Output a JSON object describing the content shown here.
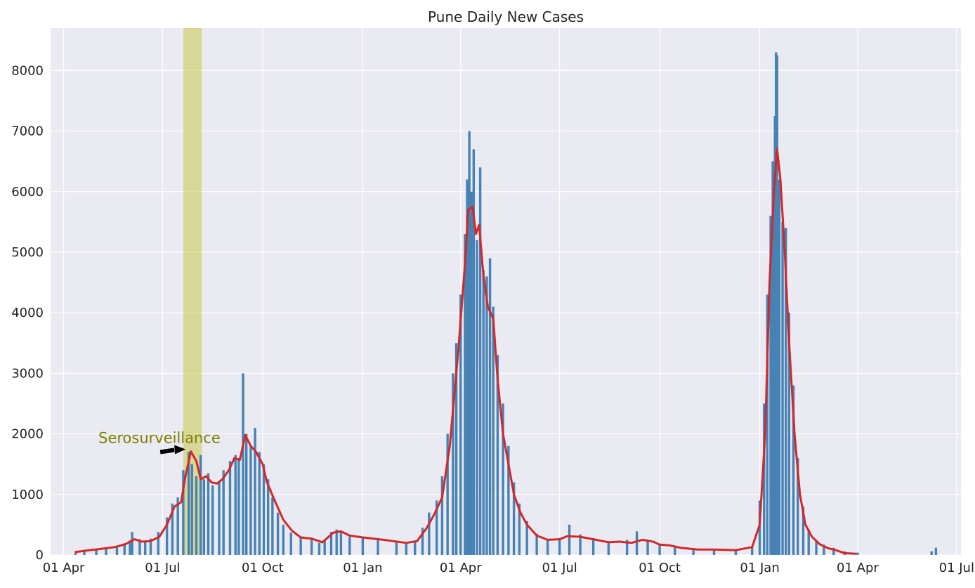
{
  "chart_data": {
    "type": "bar",
    "title": "Pune Daily New Cases",
    "xlabel": "",
    "ylabel": "",
    "xlim": [
      "2020-03-20",
      "2022-07-05"
    ],
    "ylim": [
      0,
      8700
    ],
    "grid": true,
    "x_ticks": [
      {
        "date": "2020-04-01",
        "label": "01 Apr"
      },
      {
        "date": "2020-07-01",
        "label": "01 Jul"
      },
      {
        "date": "2020-10-01",
        "label": "01 Oct"
      },
      {
        "date": "2021-01-01",
        "label": "01 Jan"
      },
      {
        "date": "2021-04-01",
        "label": "01 Apr"
      },
      {
        "date": "2021-07-01",
        "label": "01 Jul"
      },
      {
        "date": "2021-10-01",
        "label": "01 Oct"
      },
      {
        "date": "2022-01-01",
        "label": "01 Jan"
      },
      {
        "date": "2022-04-01",
        "label": "01 Apr"
      },
      {
        "date": "2022-07-01",
        "label": "01 Jul"
      }
    ],
    "y_ticks": [
      0,
      1000,
      2000,
      3000,
      4000,
      5000,
      6000,
      7000,
      8000
    ],
    "series": [
      {
        "kind": "bar",
        "color": "#4682b4",
        "points": [
          [
            "2020-04-12",
            30
          ],
          [
            "2020-04-20",
            60
          ],
          [
            "2020-05-01",
            80
          ],
          [
            "2020-05-10",
            110
          ],
          [
            "2020-05-20",
            150
          ],
          [
            "2020-05-27",
            190
          ],
          [
            "2020-06-01",
            240
          ],
          [
            "2020-06-03",
            380
          ],
          [
            "2020-06-10",
            260
          ],
          [
            "2020-06-15",
            220
          ],
          [
            "2020-06-20",
            270
          ],
          [
            "2020-06-27",
            380
          ],
          [
            "2020-07-05",
            620
          ],
          [
            "2020-07-10",
            850
          ],
          [
            "2020-07-15",
            950
          ],
          [
            "2020-07-20",
            1400
          ],
          [
            "2020-07-25",
            1700
          ],
          [
            "2020-07-28",
            1500
          ],
          [
            "2020-08-01",
            1300
          ],
          [
            "2020-08-05",
            1650
          ],
          [
            "2020-08-08",
            1250
          ],
          [
            "2020-08-12",
            1350
          ],
          [
            "2020-08-16",
            1150
          ],
          [
            "2020-08-22",
            1200
          ],
          [
            "2020-08-26",
            1400
          ],
          [
            "2020-09-01",
            1550
          ],
          [
            "2020-09-06",
            1650
          ],
          [
            "2020-09-09",
            1600
          ],
          [
            "2020-09-13",
            3000
          ],
          [
            "2020-09-16",
            2000
          ],
          [
            "2020-09-20",
            1800
          ],
          [
            "2020-09-24",
            2100
          ],
          [
            "2020-09-28",
            1700
          ],
          [
            "2020-10-02",
            1500
          ],
          [
            "2020-10-06",
            1250
          ],
          [
            "2020-10-10",
            950
          ],
          [
            "2020-10-15",
            700
          ],
          [
            "2020-10-20",
            500
          ],
          [
            "2020-10-27",
            370
          ],
          [
            "2020-11-05",
            290
          ],
          [
            "2020-11-15",
            270
          ],
          [
            "2020-11-22",
            200
          ],
          [
            "2020-11-27",
            230
          ],
          [
            "2020-12-03",
            380
          ],
          [
            "2020-12-08",
            420
          ],
          [
            "2020-12-12",
            380
          ],
          [
            "2020-12-20",
            300
          ],
          [
            "2021-01-01",
            280
          ],
          [
            "2021-01-15",
            250
          ],
          [
            "2021-02-01",
            220
          ],
          [
            "2021-02-10",
            190
          ],
          [
            "2021-02-18",
            240
          ],
          [
            "2021-02-25",
            450
          ],
          [
            "2021-03-03",
            700
          ],
          [
            "2021-03-10",
            900
          ],
          [
            "2021-03-15",
            1300
          ],
          [
            "2021-03-20",
            2000
          ],
          [
            "2021-03-25",
            3000
          ],
          [
            "2021-03-28",
            3500
          ],
          [
            "2021-04-01",
            4300
          ],
          [
            "2021-04-05",
            5300
          ],
          [
            "2021-04-07",
            6200
          ],
          [
            "2021-04-09",
            7000
          ],
          [
            "2021-04-11",
            6000
          ],
          [
            "2021-04-13",
            6700
          ],
          [
            "2021-04-16",
            5200
          ],
          [
            "2021-04-19",
            6400
          ],
          [
            "2021-04-22",
            4700
          ],
          [
            "2021-04-25",
            4600
          ],
          [
            "2021-04-28",
            4900
          ],
          [
            "2021-05-01",
            4100
          ],
          [
            "2021-05-05",
            3300
          ],
          [
            "2021-05-10",
            2500
          ],
          [
            "2021-05-15",
            1800
          ],
          [
            "2021-05-20",
            1200
          ],
          [
            "2021-05-25",
            850
          ],
          [
            "2021-06-01",
            560
          ],
          [
            "2021-06-10",
            350
          ],
          [
            "2021-06-20",
            260
          ],
          [
            "2021-07-01",
            280
          ],
          [
            "2021-07-10",
            500
          ],
          [
            "2021-07-20",
            340
          ],
          [
            "2021-08-01",
            280
          ],
          [
            "2021-08-15",
            220
          ],
          [
            "2021-09-01",
            250
          ],
          [
            "2021-09-10",
            390
          ],
          [
            "2021-09-20",
            220
          ],
          [
            "2021-10-01",
            170
          ],
          [
            "2021-10-15",
            130
          ],
          [
            "2021-11-01",
            90
          ],
          [
            "2021-11-20",
            90
          ],
          [
            "2021-12-10",
            80
          ],
          [
            "2021-12-25",
            150
          ],
          [
            "2022-01-01",
            900
          ],
          [
            "2022-01-05",
            2500
          ],
          [
            "2022-01-08",
            4300
          ],
          [
            "2022-01-11",
            5600
          ],
          [
            "2022-01-13",
            6500
          ],
          [
            "2022-01-15",
            7250
          ],
          [
            "2022-01-16",
            8300
          ],
          [
            "2022-01-17",
            8250
          ],
          [
            "2022-01-19",
            6200
          ],
          [
            "2022-01-22",
            5500
          ],
          [
            "2022-01-25",
            5400
          ],
          [
            "2022-01-28",
            4000
          ],
          [
            "2022-02-01",
            2800
          ],
          [
            "2022-02-05",
            1600
          ],
          [
            "2022-02-10",
            800
          ],
          [
            "2022-02-15",
            420
          ],
          [
            "2022-02-22",
            250
          ],
          [
            "2022-03-01",
            170
          ],
          [
            "2022-03-10",
            120
          ],
          [
            "2022-03-20",
            60
          ],
          [
            "2022-04-01",
            40
          ],
          [
            "2022-06-08",
            60
          ],
          [
            "2022-06-12",
            120
          ]
        ]
      },
      {
        "kind": "line",
        "color": "#d62728",
        "points": [
          [
            "2020-04-12",
            50
          ],
          [
            "2020-04-25",
            80
          ],
          [
            "2020-05-05",
            100
          ],
          [
            "2020-05-18",
            130
          ],
          [
            "2020-05-28",
            180
          ],
          [
            "2020-06-05",
            260
          ],
          [
            "2020-06-12",
            220
          ],
          [
            "2020-06-20",
            230
          ],
          [
            "2020-06-28",
            300
          ],
          [
            "2020-07-05",
            500
          ],
          [
            "2020-07-12",
            800
          ],
          [
            "2020-07-18",
            870
          ],
          [
            "2020-07-22",
            1300
          ],
          [
            "2020-07-27",
            1710
          ],
          [
            "2020-08-01",
            1550
          ],
          [
            "2020-08-05",
            1250
          ],
          [
            "2020-08-10",
            1300
          ],
          [
            "2020-08-15",
            1200
          ],
          [
            "2020-08-20",
            1180
          ],
          [
            "2020-08-25",
            1250
          ],
          [
            "2020-08-31",
            1400
          ],
          [
            "2020-09-05",
            1600
          ],
          [
            "2020-09-10",
            1570
          ],
          [
            "2020-09-15",
            1980
          ],
          [
            "2020-09-20",
            1800
          ],
          [
            "2020-09-25",
            1700
          ],
          [
            "2020-10-01",
            1500
          ],
          [
            "2020-10-05",
            1200
          ],
          [
            "2020-10-12",
            900
          ],
          [
            "2020-10-20",
            580
          ],
          [
            "2020-10-28",
            400
          ],
          [
            "2020-11-05",
            290
          ],
          [
            "2020-11-15",
            270
          ],
          [
            "2020-11-25",
            210
          ],
          [
            "2020-12-05",
            370
          ],
          [
            "2020-12-12",
            390
          ],
          [
            "2020-12-20",
            320
          ],
          [
            "2021-01-01",
            290
          ],
          [
            "2021-01-20",
            250
          ],
          [
            "2021-02-10",
            200
          ],
          [
            "2021-02-20",
            230
          ],
          [
            "2021-03-01",
            450
          ],
          [
            "2021-03-08",
            680
          ],
          [
            "2021-03-15",
            950
          ],
          [
            "2021-03-22",
            1800
          ],
          [
            "2021-03-30",
            3400
          ],
          [
            "2021-04-05",
            4800
          ],
          [
            "2021-04-08",
            5700
          ],
          [
            "2021-04-12",
            5750
          ],
          [
            "2021-04-15",
            5300
          ],
          [
            "2021-04-18",
            5450
          ],
          [
            "2021-04-22",
            4600
          ],
          [
            "2021-04-26",
            4100
          ],
          [
            "2021-05-01",
            3900
          ],
          [
            "2021-05-05",
            2900
          ],
          [
            "2021-05-10",
            2000
          ],
          [
            "2021-05-15",
            1500
          ],
          [
            "2021-05-20",
            1000
          ],
          [
            "2021-05-26",
            700
          ],
          [
            "2021-06-01",
            500
          ],
          [
            "2021-06-10",
            320
          ],
          [
            "2021-06-20",
            250
          ],
          [
            "2021-07-01",
            260
          ],
          [
            "2021-07-08",
            310
          ],
          [
            "2021-07-20",
            300
          ],
          [
            "2021-08-01",
            260
          ],
          [
            "2021-08-15",
            210
          ],
          [
            "2021-08-25",
            220
          ],
          [
            "2021-09-05",
            200
          ],
          [
            "2021-09-15",
            250
          ],
          [
            "2021-09-25",
            220
          ],
          [
            "2021-10-01",
            170
          ],
          [
            "2021-10-10",
            160
          ],
          [
            "2021-10-20",
            120
          ],
          [
            "2021-11-05",
            90
          ],
          [
            "2021-11-20",
            90
          ],
          [
            "2021-12-10",
            80
          ],
          [
            "2021-12-25",
            130
          ],
          [
            "2022-01-01",
            500
          ],
          [
            "2022-01-06",
            2000
          ],
          [
            "2022-01-10",
            4500
          ],
          [
            "2022-01-14",
            6000
          ],
          [
            "2022-01-17",
            6700
          ],
          [
            "2022-01-20",
            6200
          ],
          [
            "2022-01-24",
            5000
          ],
          [
            "2022-01-28",
            3500
          ],
          [
            "2022-02-02",
            2000
          ],
          [
            "2022-02-07",
            1000
          ],
          [
            "2022-02-12",
            500
          ],
          [
            "2022-02-18",
            300
          ],
          [
            "2022-02-25",
            180
          ],
          [
            "2022-03-05",
            110
          ],
          [
            "2022-03-12",
            80
          ],
          [
            "2022-03-20",
            30
          ],
          [
            "2022-03-30",
            20
          ]
        ]
      }
    ],
    "highlight_band": {
      "start": "2020-07-20",
      "end": "2020-08-06",
      "color": "#c8c84b"
    },
    "annotations": [
      {
        "text": "Serosurveillance",
        "date": "2020-05-03",
        "value": 1850,
        "color": "#808000"
      }
    ]
  }
}
